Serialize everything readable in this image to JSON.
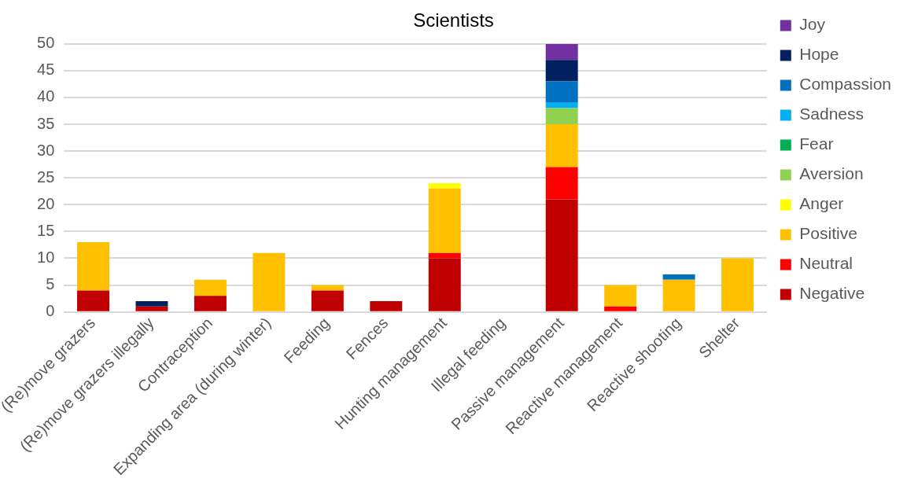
{
  "chart_data": {
    "type": "bar",
    "title": "Scientists",
    "stacked": true,
    "grid": "y",
    "legend": "right",
    "categories": [
      "(Re)move grazers",
      "(Re)move grazers illegally",
      "Contraception",
      "Expanding area (during winter)",
      "Feeding",
      "Fences",
      "Hunting management",
      "Illegal feeding",
      "Passive management",
      "Reactive management",
      "Reactive shooting",
      "Shelter"
    ],
    "ylim": [
      0,
      50
    ],
    "yticks": [
      0,
      5,
      10,
      15,
      20,
      25,
      30,
      35,
      40,
      45,
      50
    ],
    "series": [
      {
        "name": "Negative",
        "color": "#c00000",
        "values": [
          4,
          1,
          3,
          0,
          4,
          2,
          10,
          0,
          21,
          0,
          0,
          0
        ]
      },
      {
        "name": "Neutral",
        "color": "#ff0000",
        "values": [
          0,
          0,
          0,
          0,
          0,
          0,
          1,
          0,
          6,
          1,
          0,
          0
        ]
      },
      {
        "name": "Positive",
        "color": "#ffc000",
        "values": [
          9,
          0,
          3,
          11,
          1,
          0,
          12,
          0,
          8,
          4,
          6,
          10
        ]
      },
      {
        "name": "Anger",
        "color": "#ffff00",
        "values": [
          0,
          0,
          0,
          0,
          0,
          0,
          1,
          0,
          0,
          0,
          0,
          0
        ]
      },
      {
        "name": "Aversion",
        "color": "#92d050",
        "values": [
          0,
          0,
          0,
          0,
          0,
          0,
          0,
          0,
          3,
          0,
          0,
          0
        ]
      },
      {
        "name": "Fear",
        "color": "#00b050",
        "values": [
          0,
          0,
          0,
          0,
          0,
          0,
          0,
          0,
          0,
          0,
          0,
          0
        ]
      },
      {
        "name": "Sadness",
        "color": "#00b0f0",
        "values": [
          0,
          0,
          0,
          0,
          0,
          0,
          0,
          0,
          1,
          0,
          0,
          0
        ]
      },
      {
        "name": "Compassion",
        "color": "#0070c0",
        "values": [
          0,
          0,
          0,
          0,
          0,
          0,
          0,
          0,
          4,
          0,
          1,
          0
        ]
      },
      {
        "name": "Hope",
        "color": "#002060",
        "values": [
          0,
          1,
          0,
          0,
          0,
          0,
          0,
          0,
          4,
          0,
          0,
          0
        ]
      },
      {
        "name": "Joy",
        "color": "#7030a0",
        "values": [
          0,
          0,
          0,
          0,
          0,
          0,
          0,
          0,
          3,
          0,
          0,
          0
        ]
      }
    ]
  }
}
